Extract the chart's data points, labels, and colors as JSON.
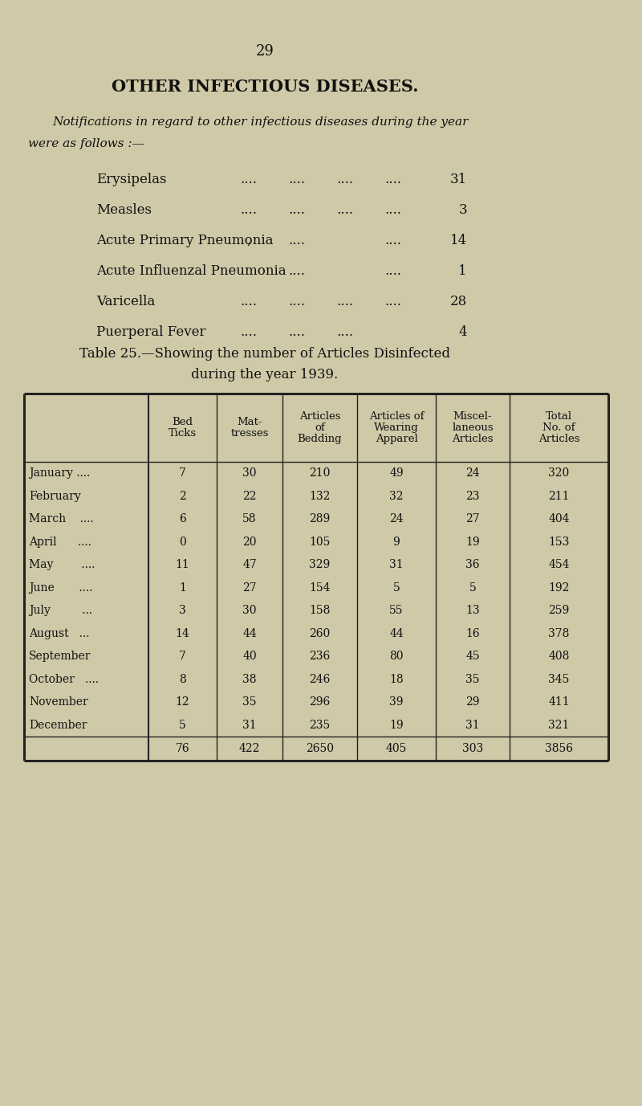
{
  "page_number": "29",
  "main_title": "OTHER INFECTIOUS DISEASES.",
  "intro_line1": "Notifications in regard to other infectious diseases during the year",
  "intro_line2": "were as follows :—",
  "diseases": [
    {
      "name": "Erysipelas",
      "dots1": "....",
      "dots2": "....",
      "dots3": "....",
      "dots4": "....",
      "value": "31"
    },
    {
      "name": "Measles",
      "dots1": "....",
      "dots2": "....",
      "dots3": "....",
      "dots4": "....",
      "value": "3"
    },
    {
      "name": "Acute Primary Pneumonia",
      "dots1": ",",
      "dots2": "....",
      "dots3": "",
      "dots4": "....",
      "value": "14"
    },
    {
      "name": "Acute Influenzal Pneumonia",
      "dots1": "",
      "dots2": "....",
      "dots3": "",
      "dots4": "....",
      "value": "1"
    },
    {
      "name": "Varicella",
      "dots1": "....",
      "dots2": "....",
      "dots3": "....",
      "dots4": "....",
      "value": "28"
    },
    {
      "name": "Puerperal Fever",
      "dots1": "....",
      "dots2": "....",
      "dots3": "....",
      "dots4": "",
      "value": "4"
    }
  ],
  "table_caption1": "Table 25.—Showing the number of Articles Disinfected",
  "table_caption2": "during the year 1939.",
  "col_headers": [
    [
      "Bed",
      "Ticks"
    ],
    [
      "Mat-",
      "tresses"
    ],
    [
      "Articles",
      "of",
      "Bedding"
    ],
    [
      "Articles of",
      "Wearing",
      "Apparel"
    ],
    [
      "Miscel-",
      "laneous",
      "Articles"
    ],
    [
      "Total",
      "No. of",
      "Articles"
    ]
  ],
  "month_labels": [
    "January ....",
    "February",
    "March    ....",
    "April      ....",
    "May        ....",
    "June       ....",
    "July         ...",
    "August   ...",
    "September",
    "October   ....",
    "November",
    "December"
  ],
  "table_data": [
    [
      7,
      30,
      210,
      49,
      24,
      320
    ],
    [
      2,
      22,
      132,
      32,
      23,
      211
    ],
    [
      6,
      58,
      289,
      24,
      27,
      404
    ],
    [
      0,
      20,
      105,
      9,
      19,
      153
    ],
    [
      11,
      47,
      329,
      31,
      36,
      454
    ],
    [
      1,
      27,
      154,
      5,
      5,
      192
    ],
    [
      3,
      30,
      158,
      55,
      13,
      259
    ],
    [
      14,
      44,
      260,
      44,
      16,
      378
    ],
    [
      7,
      40,
      236,
      80,
      45,
      408
    ],
    [
      8,
      38,
      246,
      18,
      35,
      345
    ],
    [
      12,
      35,
      296,
      39,
      29,
      411
    ],
    [
      5,
      31,
      235,
      19,
      31,
      321
    ]
  ],
  "totals": [
    76,
    422,
    2650,
    405,
    303,
    3856
  ],
  "bg_color": "#cfc9a8",
  "text_color": "#111111",
  "line_color": "#222222"
}
